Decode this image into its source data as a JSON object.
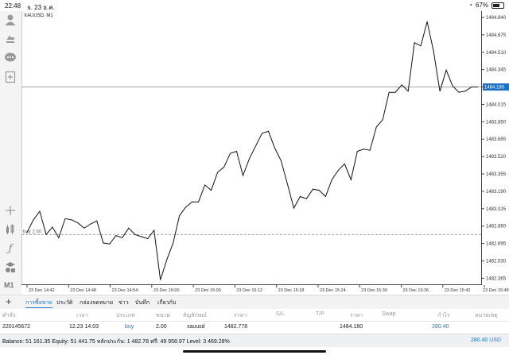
{
  "status": {
    "time": "22:48",
    "date": "จ. 23 ธ.ค.",
    "battery": "67%",
    "battery_level": 0.67
  },
  "chart": {
    "symbol_label": "XAUUSD, M1",
    "current_price": "1484.180",
    "order_line_label": "buy 2.00",
    "order_price": 1482.778
  },
  "chart_data": {
    "type": "line",
    "symbol": "XAUUSD, M1",
    "x_ticks": [
      "23 Dec 14:42",
      "23 Dec 14:48",
      "23 Dec 14:54",
      "23 Dec 15:00",
      "23 Dec 15:06",
      "23 Dec 15:12",
      "23 Dec 15:18",
      "23 Dec 15:24",
      "23 Dec 15:30",
      "23 Dec 15:36",
      "23 Dec 15:42",
      "23 Dec 15:48"
    ],
    "y_ticks": [
      "1484.840",
      "1484.675",
      "1484.510",
      "1484.345",
      "1484.180",
      "1484.015",
      "1483.850",
      "1483.685",
      "1483.520",
      "1483.355",
      "1483.190",
      "1483.025",
      "1482.860",
      "1482.695",
      "1482.530",
      "1482.365"
    ],
    "ylim": [
      1482.3,
      1484.9
    ],
    "values": [
      1482.8,
      1482.92,
      1483.0,
      1482.78,
      1482.85,
      1482.75,
      1482.93,
      1482.92,
      1482.89,
      1482.84,
      1482.88,
      1482.91,
      1482.7,
      1482.69,
      1482.77,
      1482.75,
      1482.84,
      1482.78,
      1482.76,
      1482.74,
      1482.82,
      1482.35,
      1482.54,
      1482.7,
      1482.96,
      1483.04,
      1483.09,
      1483.09,
      1483.25,
      1483.2,
      1483.37,
      1483.42,
      1483.55,
      1483.57,
      1483.34,
      1483.5,
      1483.62,
      1483.74,
      1483.76,
      1483.6,
      1483.48,
      1483.26,
      1483.03,
      1483.14,
      1483.12,
      1483.21,
      1483.2,
      1483.14,
      1483.3,
      1483.39,
      1483.45,
      1483.3,
      1483.57,
      1483.59,
      1483.58,
      1483.8,
      1483.87,
      1484.13,
      1484.13,
      1484.2,
      1484.14,
      1484.6,
      1484.57,
      1484.8,
      1484.52,
      1484.14,
      1484.34,
      1484.19,
      1484.13,
      1484.14,
      1484.18,
      1484.18
    ],
    "current_price": 1484.18,
    "grid": false
  },
  "sidebar": {
    "timeframe": "M1"
  },
  "tabs": [
    {
      "label": "การซื้อขาย",
      "active": true
    },
    {
      "label": "ประวัติ",
      "active": false
    },
    {
      "label": "กล่องจดหมาย",
      "active": false
    },
    {
      "label": "ข่าว",
      "active": false
    },
    {
      "label": "บันทึก",
      "active": false
    },
    {
      "label": "เกี่ยวกับ",
      "active": false
    }
  ],
  "table": {
    "headers": [
      "คำสั่ง",
      "เวลา",
      "ประเภท",
      "ขนาด",
      "สัญลักษณ์",
      "ราคา",
      "S/L",
      "T/P",
      "ราคา",
      "Swap",
      "กำไร",
      "หมายเหตุ"
    ],
    "rows": [
      [
        "220145672",
        "12.23 14:03",
        "buy",
        "2.00",
        "xauusd",
        "1482.778",
        "",
        "",
        "1484.180",
        "",
        "280.40",
        ""
      ]
    ]
  },
  "balance": {
    "text": "Balance: 51 161.35 Equity: 51 441.75 หลักประกัน: 1 482.78 ฟรี: 49 958.97 Level: 3 469.28%",
    "profit": "280.40",
    "currency": "USD"
  }
}
